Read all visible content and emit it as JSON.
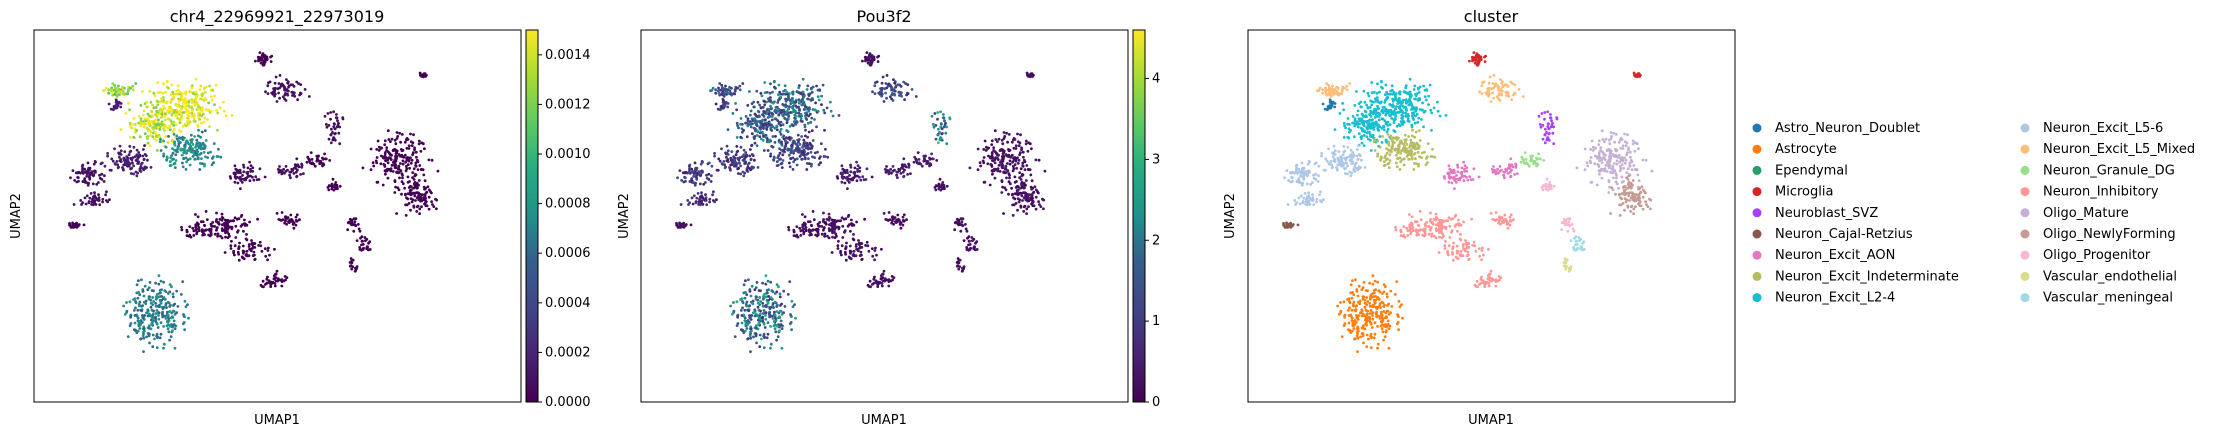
{
  "panels": [
    {
      "title": "chr4_22969921_22973019",
      "xlabel": "UMAP1",
      "ylabel": "UMAP2",
      "colorbar": {
        "colormap": "viridis",
        "min": 0.0,
        "max": 0.0015,
        "ticks": [
          "0.0000",
          "0.0002",
          "0.0004",
          "0.0006",
          "0.0008",
          "0.0010",
          "0.0012",
          "0.0014"
        ],
        "tick_values": [
          0,
          0.0002,
          0.0004,
          0.0006,
          0.0008,
          0.001,
          0.0012,
          0.0014
        ]
      }
    },
    {
      "title": "Pou3f2",
      "xlabel": "UMAP1",
      "ylabel": "UMAP2",
      "colorbar": {
        "colormap": "viridis",
        "min": 0,
        "max": 4.6,
        "ticks": [
          "0",
          "1",
          "2",
          "3",
          "4"
        ],
        "tick_values": [
          0,
          1,
          2,
          3,
          4
        ]
      }
    },
    {
      "title": "cluster",
      "xlabel": "UMAP1",
      "ylabel": "UMAP2"
    }
  ],
  "legend": {
    "placement": "right of third panel, two columns",
    "items": [
      {
        "label": "Astro_Neuron_Doublet",
        "color": "#1f77b4"
      },
      {
        "label": "Astrocyte",
        "color": "#ff7f0e"
      },
      {
        "label": "Ependymal",
        "color": "#279e68"
      },
      {
        "label": "Microglia",
        "color": "#d62728"
      },
      {
        "label": "Neuroblast_SVZ",
        "color": "#aa40fc"
      },
      {
        "label": "Neuron_Cajal-Retzius",
        "color": "#8c564b"
      },
      {
        "label": "Neuron_Excit_AON",
        "color": "#e377c2"
      },
      {
        "label": "Neuron_Excit_Indeterminate",
        "color": "#b5bd61"
      },
      {
        "label": "Neuron_Excit_L2-4",
        "color": "#17becf"
      },
      {
        "label": "Neuron_Excit_L5-6",
        "color": "#aec7e8"
      },
      {
        "label": "Neuron_Excit_L5_Mixed",
        "color": "#ffbb78"
      },
      {
        "label": "Neuron_Granule_DG",
        "color": "#98df8a"
      },
      {
        "label": "Neuron_Inhibitory",
        "color": "#ff9896"
      },
      {
        "label": "Oligo_Mature",
        "color": "#c5b0d5"
      },
      {
        "label": "Oligo_NewlyForming",
        "color": "#c49c94"
      },
      {
        "label": "Oligo_Progenitor",
        "color": "#f7b6d2"
      },
      {
        "label": "Vascular_endothelial",
        "color": "#dbdb8d"
      },
      {
        "label": "Vascular_meningeal",
        "color": "#9edae5"
      }
    ]
  },
  "chart_data": [
    {
      "type": "scatter",
      "title": "chr4_22969921_22973019",
      "xlabel": "UMAP1",
      "ylabel": "UMAP2",
      "color_scale": {
        "colormap": "viridis",
        "range": [
          0,
          0.0015
        ]
      },
      "cell_groups": [
        {
          "group": "upper-left cortex mass (L2-4 / L5)",
          "value": 0.0015
        },
        {
          "group": "central excitatory region",
          "value": 0.0008
        },
        {
          "group": "astrocyte island (bottom)",
          "value": 0.0005
        },
        {
          "group": "oligodendrocyte region (right)",
          "value": 0.0
        },
        {
          "group": "inhibitory / other islands",
          "value": 0.0
        }
      ]
    },
    {
      "type": "scatter",
      "title": "Pou3f2",
      "xlabel": "UMAP1",
      "ylabel": "UMAP2",
      "color_scale": {
        "colormap": "viridis",
        "range": [
          0,
          4.6
        ]
      },
      "cell_groups": [
        {
          "group": "upper-left cortex mass (L2-4 / L5)",
          "value": 1.5
        },
        {
          "group": "central excitatory region",
          "value": 1.2
        },
        {
          "group": "astrocyte island (bottom)",
          "value": 1.5
        },
        {
          "group": "oligodendrocyte region (right)",
          "value": 0.2
        },
        {
          "group": "inhibitory / other islands",
          "value": 0.3
        }
      ]
    },
    {
      "type": "scatter",
      "title": "cluster",
      "xlabel": "UMAP1",
      "ylabel": "UMAP2",
      "categorical": true
    }
  ]
}
